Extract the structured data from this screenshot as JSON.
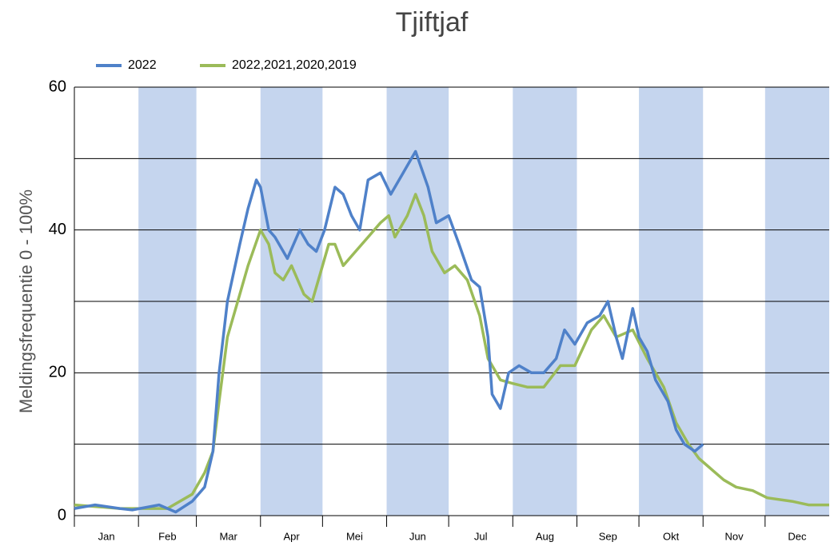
{
  "chart_data": {
    "type": "line",
    "title": "Tjiftjaf",
    "ylabel": "Meldingsfrequentie 0 - 100%",
    "xlim": [
      1,
      366
    ],
    "ylim": [
      0,
      60
    ],
    "yticks": [
      0,
      20,
      40,
      60
    ],
    "minor_yticks": [
      10,
      30,
      50
    ],
    "grid": true,
    "band_color": "#c5d5ee",
    "xticks": [
      {
        "value": 1,
        "label": "Jan"
      },
      {
        "value": 32,
        "label": "Feb"
      },
      {
        "value": 60,
        "label": "Mar"
      },
      {
        "value": 91,
        "label": "Apr"
      },
      {
        "value": 121,
        "label": "Mei"
      },
      {
        "value": 152,
        "label": "Jun"
      },
      {
        "value": 182,
        "label": "Jul"
      },
      {
        "value": 213,
        "label": "Aug"
      },
      {
        "value": 244,
        "label": "Sep"
      },
      {
        "value": 274,
        "label": "Okt"
      },
      {
        "value": 305,
        "label": "Nov"
      },
      {
        "value": 335,
        "label": "Dec"
      }
    ],
    "series": [
      {
        "name": "2022",
        "color": "#4f81c9",
        "x": [
          1,
          11,
          23,
          29,
          42,
          50,
          58,
          64,
          68,
          71,
          75,
          81,
          85,
          89,
          91,
          95,
          98,
          104,
          110,
          114,
          118,
          122,
          127,
          131,
          135,
          139,
          143,
          149,
          154,
          160,
          166,
          172,
          176,
          182,
          187,
          193,
          197,
          201,
          203,
          207,
          211,
          216,
          222,
          228,
          234,
          238,
          243,
          249,
          255,
          259,
          263,
          266,
          271,
          274,
          278,
          282,
          288,
          292,
          296,
          301,
          305
        ],
        "values": [
          1,
          1.5,
          1,
          0.8,
          1.5,
          0.5,
          2,
          4,
          9,
          20,
          30,
          38,
          43,
          47,
          46,
          40,
          39,
          36,
          40,
          38,
          37,
          40,
          46,
          45,
          42,
          40,
          47,
          48,
          45,
          48,
          51,
          46,
          41,
          42,
          38,
          33,
          32,
          25,
          17,
          15,
          20,
          21,
          20,
          20,
          22,
          26,
          24,
          27,
          28,
          30,
          25,
          22,
          29,
          25,
          23,
          19,
          16,
          12,
          10,
          9,
          10
        ]
      },
      {
        "name": "2022,2021,2020,2019",
        "color": "#9bbb59",
        "x": [
          1,
          23,
          46,
          58,
          64,
          68,
          71,
          75,
          81,
          85,
          91,
          95,
          98,
          102,
          106,
          112,
          116,
          120,
          124,
          127,
          131,
          137,
          143,
          149,
          153,
          156,
          162,
          166,
          170,
          174,
          180,
          185,
          191,
          197,
          201,
          207,
          213,
          220,
          228,
          236,
          243,
          251,
          257,
          263,
          271,
          278,
          286,
          292,
          298,
          303,
          309,
          315,
          321,
          329,
          336,
          348,
          356,
          366
        ],
        "values": [
          1.5,
          1,
          1,
          3,
          6,
          9,
          16,
          25,
          31,
          35,
          40,
          38,
          34,
          33,
          35,
          31,
          30,
          34,
          38,
          38,
          35,
          37,
          39,
          41,
          42,
          39,
          42,
          45,
          42,
          37,
          34,
          35,
          33,
          28,
          22,
          19,
          18.5,
          18,
          18,
          21,
          21,
          26,
          28,
          25,
          26,
          22,
          18,
          13,
          10,
          8,
          6.5,
          5,
          4,
          3.5,
          2.5,
          2,
          1.5,
          1.5
        ]
      }
    ]
  }
}
